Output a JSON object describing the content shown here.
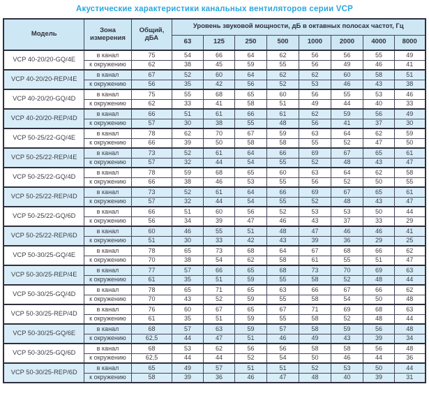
{
  "title": "Акустические характеристики канальных вентиляторов  серии VCP",
  "colors": {
    "title_text": "#29a7de",
    "header_bg": "#cde7f5",
    "highlight_row_bg": "#d8edf8",
    "border": "#2f2f3d",
    "body_text": "#3d3d44"
  },
  "table": {
    "headers": {
      "model": "Модель",
      "zone": "Зона измерения",
      "total": "Общий, дБА",
      "octave_span": "Уровень звуковой мощности, дБ в октавных полосах частот, Гц",
      "frequencies": [
        "63",
        "125",
        "250",
        "500",
        "1000",
        "2000",
        "4000",
        "8000"
      ]
    },
    "zone_labels": {
      "duct": "в канал",
      "ambient": "к окружению"
    },
    "groups": [
      {
        "model": "VCP 40-20/20-GQ/4E",
        "highlight": false,
        "rows": [
          {
            "zone": "в канал",
            "total": "75",
            "values": [
              "54",
              "66",
              "64",
              "62",
              "56",
              "56",
              "55",
              "49"
            ]
          },
          {
            "zone": "к окружению",
            "total": "62",
            "values": [
              "38",
              "45",
              "59",
              "55",
              "56",
              "49",
              "46",
              "41"
            ]
          }
        ]
      },
      {
        "model": "VCP 40-20/20-REP/4E",
        "highlight": true,
        "rows": [
          {
            "zone": "в канал",
            "total": "67",
            "values": [
              "52",
              "60",
              "64",
              "62",
              "62",
              "60",
              "58",
              "51"
            ]
          },
          {
            "zone": "к окружению",
            "total": "56",
            "values": [
              "35",
              "42",
              "56",
              "52",
              "53",
              "46",
              "43",
              "38"
            ]
          }
        ]
      },
      {
        "model": "VCP 40-20/20-GQ/4D",
        "highlight": false,
        "rows": [
          {
            "zone": "в канал",
            "total": "75",
            "values": [
              "55",
              "68",
              "65",
              "60",
              "56",
              "55",
              "53",
              "46"
            ]
          },
          {
            "zone": "к окружению",
            "total": "62",
            "values": [
              "33",
              "41",
              "58",
              "51",
              "49",
              "44",
              "40",
              "33"
            ]
          }
        ]
      },
      {
        "model": "VCP 40-20/20-REP/4D",
        "highlight": true,
        "rows": [
          {
            "zone": "в канал",
            "total": "66",
            "values": [
              "51",
              "61",
              "66",
              "61",
              "62",
              "59",
              "56",
              "49"
            ]
          },
          {
            "zone": "к окружению",
            "total": "57",
            "values": [
              "30",
              "38",
              "55",
              "48",
              "56",
              "41",
              "37",
              "30"
            ]
          }
        ]
      },
      {
        "model": "VCP 50-25/22-GQ/4E",
        "highlight": false,
        "rows": [
          {
            "zone": "в канал",
            "total": "78",
            "values": [
              "62",
              "70",
              "67",
              "59",
              "63",
              "64",
              "62",
              "59"
            ]
          },
          {
            "zone": "к окружению",
            "total": "66",
            "values": [
              "39",
              "50",
              "58",
              "58",
              "55",
              "52",
              "47",
              "50"
            ]
          }
        ]
      },
      {
        "model": "VCP 50-25/22-REP/4E",
        "highlight": true,
        "rows": [
          {
            "zone": "в канал",
            "total": "73",
            "values": [
              "52",
              "61",
              "64",
              "66",
              "69",
              "67",
              "65",
              "61"
            ]
          },
          {
            "zone": "к окружению",
            "total": "57",
            "values": [
              "32",
              "44",
              "54",
              "55",
              "52",
              "48",
              "43",
              "47"
            ]
          }
        ]
      },
      {
        "model": "VCP 50-25/22-GQ/4D",
        "highlight": false,
        "rows": [
          {
            "zone": "в канал",
            "total": "78",
            "values": [
              "59",
              "68",
              "65",
              "60",
              "63",
              "64",
              "62",
              "58"
            ]
          },
          {
            "zone": "к окружению",
            "total": "66",
            "values": [
              "38",
              "46",
              "53",
              "55",
              "56",
              "52",
              "50",
              "55"
            ]
          }
        ]
      },
      {
        "model": "VCP 50-25/22-REP/4D",
        "highlight": true,
        "rows": [
          {
            "zone": "в канал",
            "total": "73",
            "values": [
              "52",
              "61",
              "64",
              "66",
              "69",
              "67",
              "65",
              "61"
            ]
          },
          {
            "zone": "к окружению",
            "total": "57",
            "values": [
              "32",
              "44",
              "54",
              "55",
              "52",
              "48",
              "43",
              "47"
            ]
          }
        ]
      },
      {
        "model": "VCP 50-25/22-GQ/6D",
        "highlight": false,
        "rows": [
          {
            "zone": "в канал",
            "total": "66",
            "values": [
              "51",
              "60",
              "56",
              "52",
              "53",
              "53",
              "50",
              "44"
            ]
          },
          {
            "zone": "к окружению",
            "total": "56",
            "values": [
              "34",
              "39",
              "47",
              "46",
              "43",
              "37",
              "33",
              "29"
            ]
          }
        ]
      },
      {
        "model": "VCP 50-25/22-REP/6D",
        "highlight": true,
        "rows": [
          {
            "zone": "в канал",
            "total": "60",
            "values": [
              "46",
              "55",
              "51",
              "48",
              "47",
              "46",
              "46",
              "41"
            ]
          },
          {
            "zone": "к окружению",
            "total": "51",
            "values": [
              "30",
              "33",
              "42",
              "43",
              "39",
              "36",
              "29",
              "25"
            ]
          }
        ]
      },
      {
        "model": "VCP 50-30/25-GQ/4E",
        "highlight": false,
        "rows": [
          {
            "zone": "в канал",
            "total": "78",
            "values": [
              "65",
              "73",
              "68",
              "64",
              "67",
              "68",
              "66",
              "62"
            ]
          },
          {
            "zone": "к окружению",
            "total": "70",
            "values": [
              "38",
              "54",
              "62",
              "58",
              "61",
              "55",
              "51",
              "47"
            ]
          }
        ]
      },
      {
        "model": "VCP 50-30/25-REP/4E",
        "highlight": true,
        "rows": [
          {
            "zone": "в канал",
            "total": "77",
            "values": [
              "57",
              "66",
              "65",
              "68",
              "73",
              "70",
              "69",
              "63"
            ]
          },
          {
            "zone": "к окружению",
            "total": "61",
            "values": [
              "35",
              "51",
              "59",
              "55",
              "58",
              "52",
              "48",
              "44"
            ]
          }
        ]
      },
      {
        "model": "VCP 50-30/25-GQ/4D",
        "highlight": false,
        "rows": [
          {
            "zone": "в канал",
            "total": "78",
            "values": [
              "65",
              "71",
              "65",
              "63",
              "66",
              "67",
              "66",
              "62"
            ]
          },
          {
            "zone": "к окружению",
            "total": "70",
            "values": [
              "43",
              "52",
              "59",
              "55",
              "58",
              "54",
              "50",
              "48"
            ]
          }
        ]
      },
      {
        "model": "VCP 50-30/25-REP/4D",
        "highlight": false,
        "rows": [
          {
            "zone": "в канал",
            "total": "76",
            "values": [
              "60",
              "67",
              "65",
              "67",
              "71",
              "69",
              "68",
              "63"
            ]
          },
          {
            "zone": "к окружению",
            "total": "61",
            "values": [
              "35",
              "51",
              "59",
              "55",
              "58",
              "52",
              "48",
              "44"
            ]
          }
        ]
      },
      {
        "model": "VCP 50-30/25-GQ/6E",
        "highlight": true,
        "rows": [
          {
            "zone": "в канал",
            "total": "68",
            "values": [
              "57",
              "63",
              "59",
              "57",
              "58",
              "59",
              "56",
              "48"
            ]
          },
          {
            "zone": "к окружению",
            "total": "62,5",
            "values": [
              "44",
              "47",
              "51",
              "46",
              "49",
              "43",
              "39",
              "34"
            ]
          }
        ]
      },
      {
        "model": "VCP 50-30/25-GQ/6D",
        "highlight": false,
        "rows": [
          {
            "zone": "в канал",
            "total": "68",
            "values": [
              "53",
              "62",
              "56",
              "56",
              "58",
              "58",
              "56",
              "48"
            ]
          },
          {
            "zone": "к окружению",
            "total": "62,5",
            "values": [
              "44",
              "44",
              "52",
              "54",
              "50",
              "46",
              "44",
              "36"
            ]
          }
        ]
      },
      {
        "model": "VCP 50-30/25-REP/6D",
        "highlight": true,
        "rows": [
          {
            "zone": "в канал",
            "total": "65",
            "values": [
              "49",
              "57",
              "51",
              "51",
              "52",
              "53",
              "50",
              "44"
            ]
          },
          {
            "zone": "к окружению",
            "total": "58",
            "values": [
              "39",
              "36",
              "46",
              "47",
              "48",
              "40",
              "39",
              "31"
            ]
          }
        ]
      }
    ]
  }
}
